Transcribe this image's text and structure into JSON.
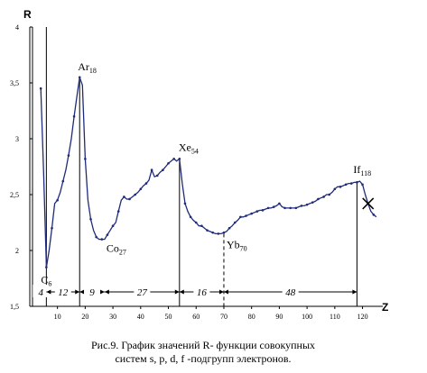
{
  "chart_data": {
    "type": "line",
    "y_axis_name": "R",
    "x_axis_name": "Z",
    "ylim": [
      1.5,
      4
    ],
    "xlim": [
      1,
      126
    ],
    "yticks": [
      "1,5",
      "2",
      "2,5",
      "3",
      "3,5",
      "4"
    ],
    "ytick_values": [
      1.5,
      2,
      2.5,
      3,
      3.5,
      4
    ],
    "xticks": [
      "10",
      "20",
      "30",
      "40",
      "50",
      "60",
      "70",
      "80",
      "90",
      "100",
      "110",
      "120"
    ],
    "xtick_values": [
      10,
      20,
      30,
      40,
      50,
      60,
      70,
      80,
      90,
      100,
      110,
      120
    ],
    "line_color": "#1f2b7a",
    "series": [
      {
        "x": [
          4,
          5,
          6,
          7,
          8,
          9,
          10,
          11,
          12,
          13,
          14,
          15,
          16,
          17,
          18,
          19,
          20,
          21,
          22,
          23,
          24,
          25,
          26,
          27,
          28,
          29,
          30,
          31,
          32,
          33,
          34,
          35,
          36,
          37,
          38,
          39,
          40,
          41,
          42,
          43,
          44,
          45,
          46,
          47,
          48,
          49,
          50,
          51,
          52,
          53,
          54,
          55,
          56,
          57,
          58,
          59,
          60,
          61,
          62,
          63,
          64,
          65,
          66,
          67,
          68,
          69,
          70,
          71,
          72,
          73,
          74,
          75,
          76,
          77,
          78,
          79,
          80,
          81,
          82,
          83,
          84,
          85,
          86,
          87,
          88,
          89,
          90,
          91,
          92,
          93,
          94,
          95,
          96,
          97,
          98,
          99,
          100,
          101,
          102,
          103,
          104,
          105,
          106,
          107,
          108,
          109,
          110,
          111,
          112,
          113,
          114,
          115,
          116,
          117,
          118,
          119,
          120,
          121,
          122,
          123,
          124,
          125
        ],
        "y": [
          3.45,
          2.7,
          1.85,
          2.0,
          2.2,
          2.42,
          2.45,
          2.52,
          2.62,
          2.72,
          2.85,
          3.0,
          3.2,
          3.38,
          3.55,
          3.48,
          2.82,
          2.45,
          2.28,
          2.18,
          2.12,
          2.1,
          2.1,
          2.1,
          2.14,
          2.18,
          2.22,
          2.25,
          2.35,
          2.45,
          2.48,
          2.46,
          2.46,
          2.48,
          2.5,
          2.52,
          2.55,
          2.58,
          2.6,
          2.63,
          2.72,
          2.66,
          2.67,
          2.7,
          2.72,
          2.75,
          2.78,
          2.8,
          2.82,
          2.8,
          2.82,
          2.6,
          2.42,
          2.35,
          2.3,
          2.27,
          2.25,
          2.22,
          2.22,
          2.2,
          2.18,
          2.17,
          2.16,
          2.15,
          2.15,
          2.15,
          2.16,
          2.17,
          2.2,
          2.22,
          2.25,
          2.27,
          2.3,
          2.3,
          2.31,
          2.32,
          2.33,
          2.34,
          2.35,
          2.36,
          2.36,
          2.37,
          2.38,
          2.38,
          2.39,
          2.4,
          2.42,
          2.39,
          2.38,
          2.38,
          2.38,
          2.38,
          2.38,
          2.39,
          2.4,
          2.4,
          2.41,
          2.42,
          2.43,
          2.44,
          2.46,
          2.47,
          2.48,
          2.5,
          2.5,
          2.52,
          2.55,
          2.57,
          2.57,
          2.58,
          2.59,
          2.6,
          2.6,
          2.61,
          2.61,
          2.62,
          2.59,
          2.5,
          2.42,
          2.35,
          2.32,
          2.3
        ]
      }
    ],
    "cross_marker": {
      "x": 122,
      "y": 2.42
    },
    "point_labels": [
      {
        "main": "Ar",
        "sub": "18",
        "x": 18,
        "y": 3.55
      },
      {
        "main": "Xe",
        "sub": "54",
        "x": 54,
        "y": 2.82
      },
      {
        "main": "Co",
        "sub": "27",
        "x": 27,
        "y": 2.1
      },
      {
        "main": "Yb",
        "sub": "70",
        "x": 70,
        "y": 2.15
      },
      {
        "main": "C",
        "sub": "6",
        "x": 6,
        "y": 1.85
      },
      {
        "main": "If",
        "sub": "118",
        "x": 118,
        "y": 2.62
      }
    ],
    "vlines": [
      {
        "x": 6,
        "y_top": 4.0,
        "style": "solid"
      },
      {
        "x": 18,
        "y_top": 3.55,
        "style": "solid"
      },
      {
        "x": 54,
        "y_top": 2.82,
        "style": "solid"
      },
      {
        "x": 70,
        "y_top": 2.15,
        "style": "dashed"
      },
      {
        "x": 118,
        "y_top": 2.62,
        "style": "solid"
      }
    ],
    "segments": [
      {
        "label": "4",
        "x0": 2,
        "x1": 6
      },
      {
        "label": "12",
        "x0": 6,
        "x1": 18
      },
      {
        "label": "9",
        "x0": 18,
        "x1": 27
      },
      {
        "label": "27",
        "x0": 27,
        "x1": 54
      },
      {
        "label": "16",
        "x0": 54,
        "x1": 70
      },
      {
        "label": "48",
        "x0": 70,
        "x1": 118
      }
    ]
  },
  "caption": {
    "line1": "Рис.9.  График значений R- функции совокупных",
    "line2": "систем s, p, d, f -подгрупп электронов."
  }
}
